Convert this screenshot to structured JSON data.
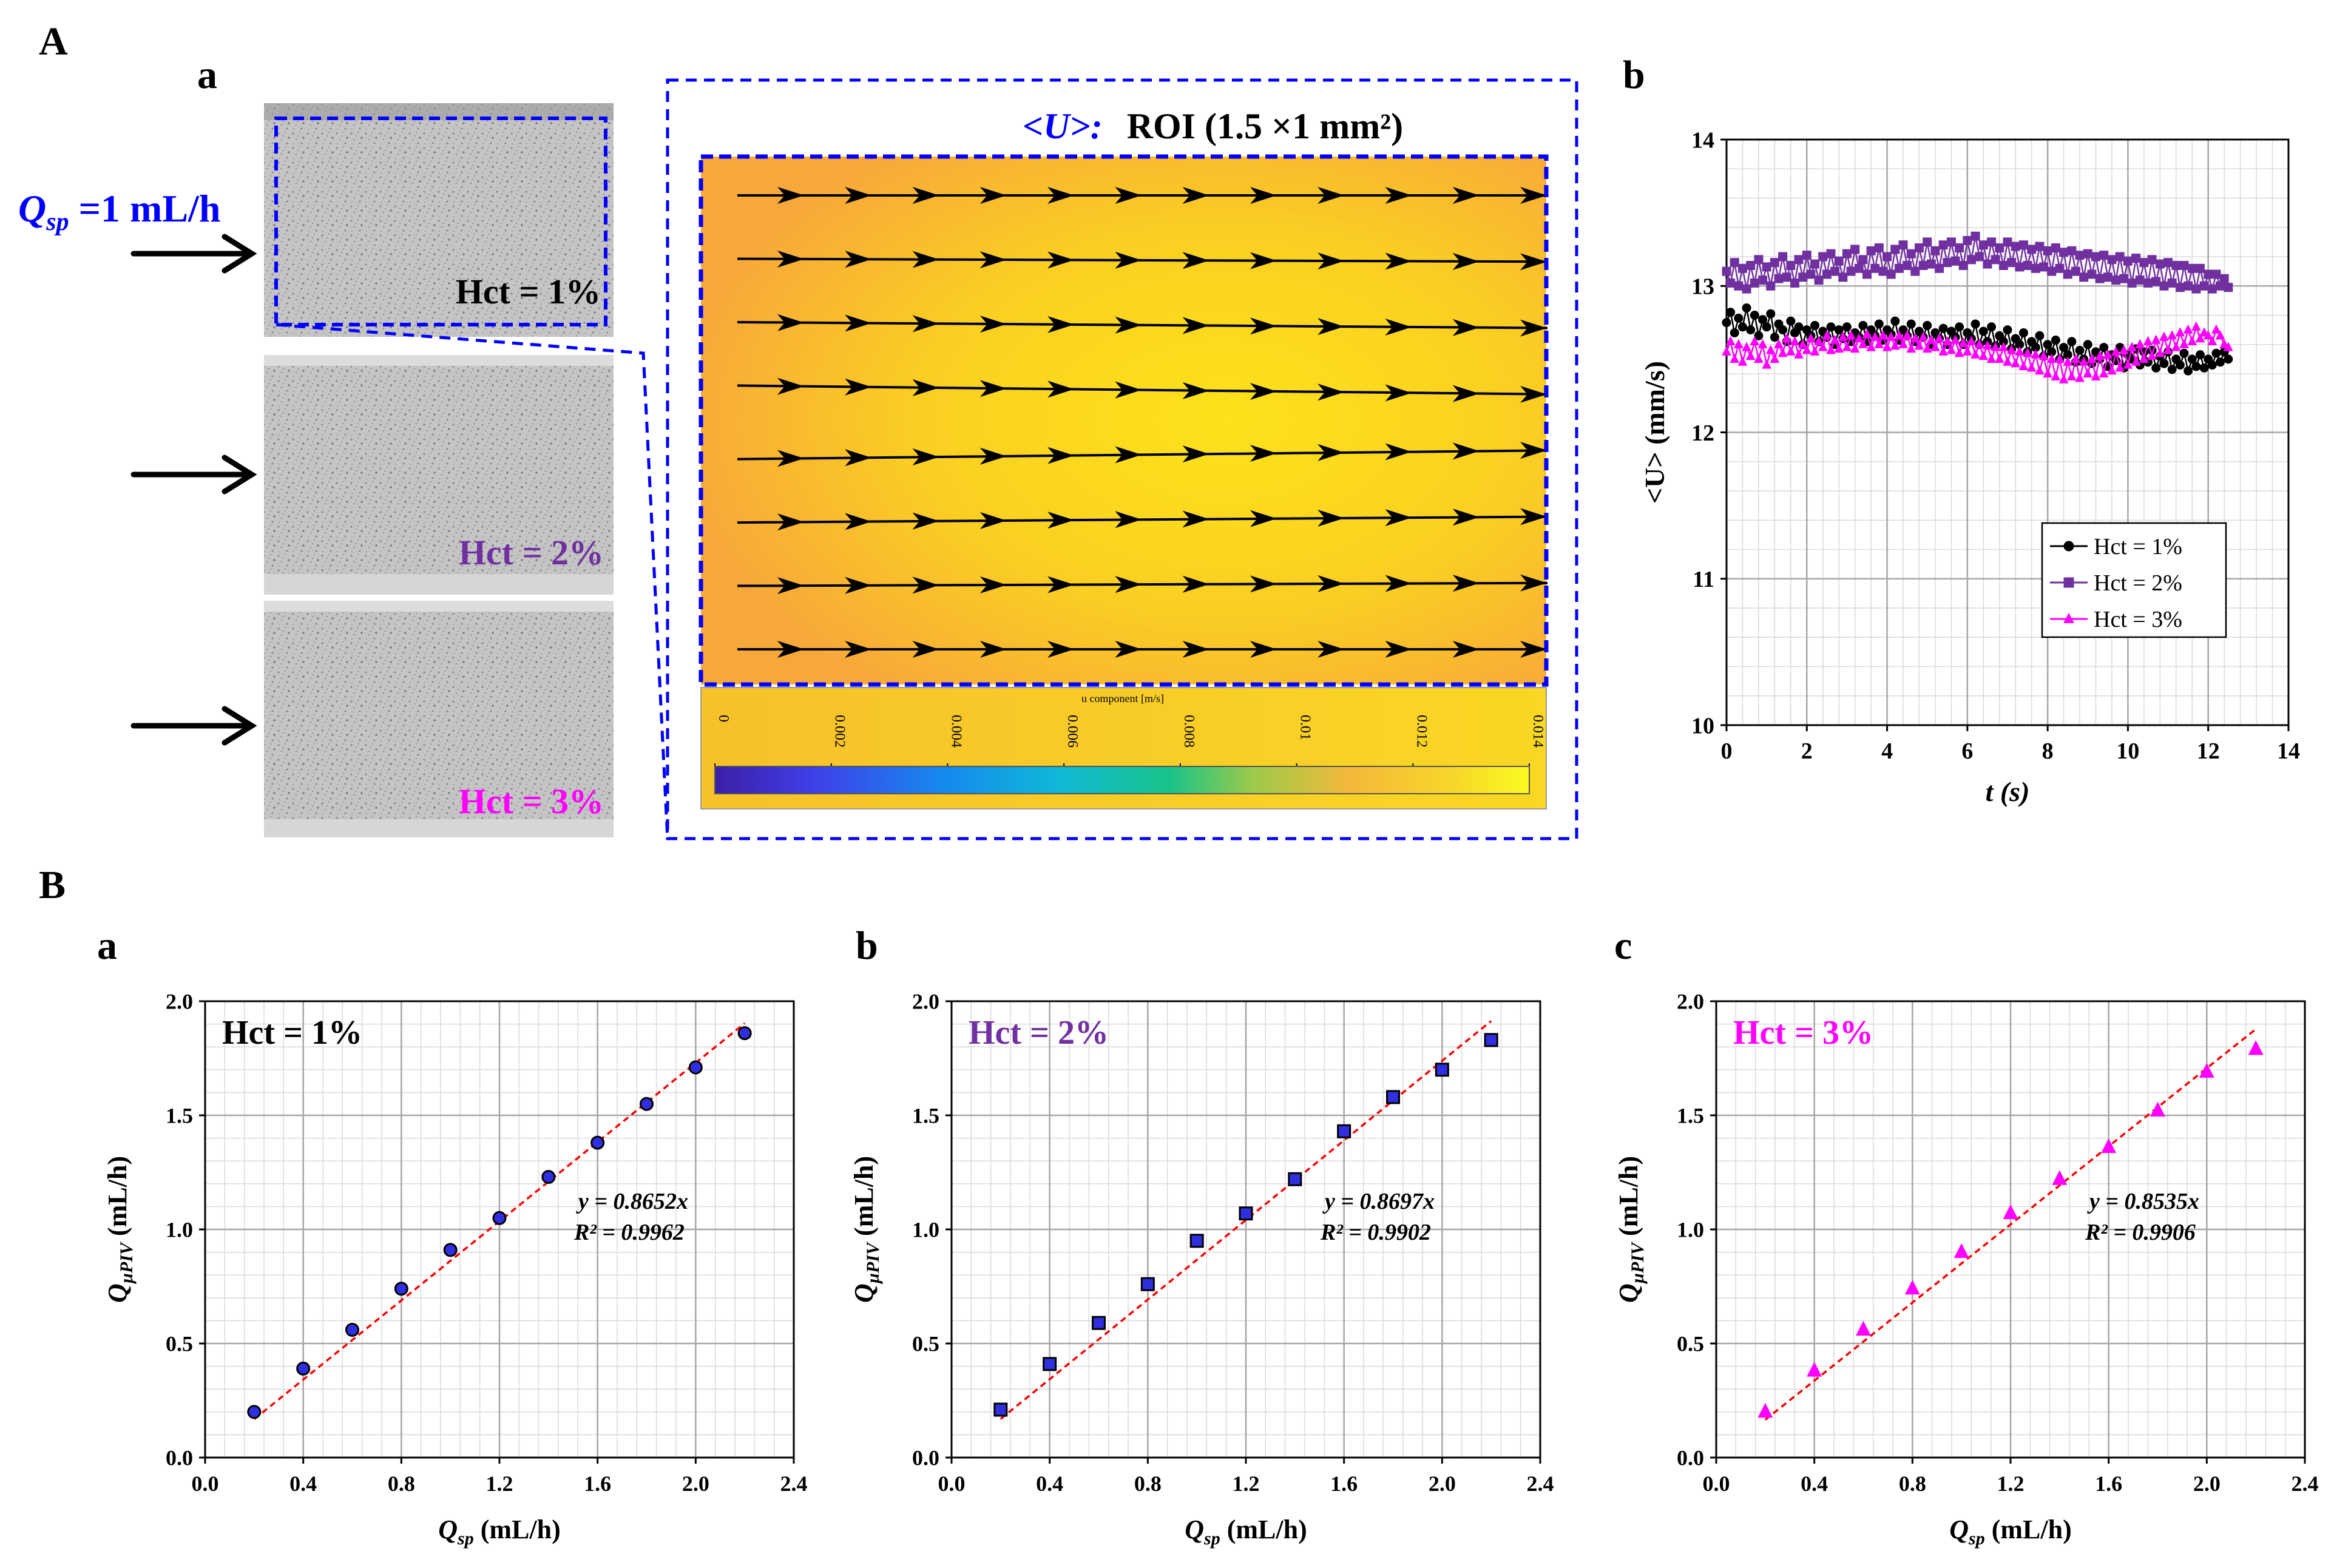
{
  "panel_labels": {
    "A": "A",
    "Aa": "a",
    "Ab": "b",
    "B": "B",
    "Ba": "a",
    "Bb": "b",
    "Bc": "c"
  },
  "flow_label": {
    "q": "Q",
    "sub": "sp",
    "rest": " =1 mL/h"
  },
  "images": [
    {
      "label": "Hct = 1%",
      "color": "#000000"
    },
    {
      "label": "Hct = 2%",
      "color": "#7030A0"
    },
    {
      "label": "Hct = 3%",
      "color": "#FF00FF"
    }
  ],
  "roi": {
    "u_label": "<U>:",
    "roi_label": "ROI (1.5 ×1 mm²)"
  },
  "colorbar": {
    "title": "u component [m/s]",
    "ticks": [
      "0",
      "0.002",
      "0.004",
      "0.006",
      "0.008",
      "0.01",
      "0.012",
      "0.014"
    ]
  },
  "colors": {
    "hct1": "#000000",
    "hct2": "#7030A0",
    "hct3": "#FF00FF",
    "dash": "#0000FF",
    "fit": "#FF0000",
    "marker2": "#2F2FE0"
  },
  "chart_data": [
    {
      "id": "Ab",
      "type": "line",
      "ylabel": "<U> (mm/s)",
      "xlabel": "t (s)",
      "xlim": [
        0,
        14
      ],
      "ylim": [
        10,
        14
      ],
      "xticks": [
        "0",
        "2",
        "4",
        "6",
        "8",
        "10",
        "12",
        "14"
      ],
      "yticks": [
        "10",
        "11",
        "12",
        "13",
        "14"
      ],
      "grid": true,
      "legend": "center-right",
      "series": [
        {
          "name": "Hct = 1%",
          "marker": "circle",
          "x0": 0,
          "dt": 0.1,
          "values": [
            12.75,
            12.82,
            12.68,
            12.78,
            12.72,
            12.85,
            12.7,
            12.8,
            12.66,
            12.77,
            12.72,
            12.81,
            12.65,
            12.74,
            12.7,
            12.62,
            12.76,
            12.68,
            12.72,
            12.6,
            12.7,
            12.66,
            12.73,
            12.62,
            12.69,
            12.65,
            12.72,
            12.6,
            12.7,
            12.64,
            12.72,
            12.62,
            12.68,
            12.65,
            12.73,
            12.62,
            12.7,
            12.66,
            12.74,
            12.63,
            12.7,
            12.67,
            12.76,
            12.63,
            12.7,
            12.66,
            12.74,
            12.62,
            12.69,
            12.65,
            12.73,
            12.6,
            12.68,
            12.64,
            12.71,
            12.6,
            12.69,
            12.65,
            12.72,
            12.6,
            12.68,
            12.64,
            12.74,
            12.6,
            12.69,
            12.62,
            12.72,
            12.59,
            12.66,
            12.62,
            12.7,
            12.57,
            12.64,
            12.6,
            12.68,
            12.55,
            12.62,
            12.58,
            12.66,
            12.52,
            12.6,
            12.55,
            12.63,
            12.5,
            12.58,
            12.53,
            12.62,
            12.48,
            12.56,
            12.5,
            12.6,
            12.47,
            12.55,
            12.5,
            12.58,
            12.45,
            12.53,
            12.49,
            12.58,
            12.44,
            12.53,
            12.5,
            12.57,
            12.46,
            12.55,
            12.48,
            12.56,
            12.44,
            12.52,
            12.47,
            12.55,
            12.43,
            12.5,
            12.46,
            12.54,
            12.42,
            12.5,
            12.45,
            12.53,
            12.44,
            12.5,
            12.46,
            12.54,
            12.48,
            12.55,
            12.5
          ]
        },
        {
          "name": "Hct = 2%",
          "marker": "square",
          "x0": 0,
          "dt": 0.1,
          "values": [
            13.1,
            13.02,
            13.16,
            13.0,
            13.12,
            12.98,
            13.14,
            13.02,
            13.18,
            13.04,
            13.13,
            13.0,
            13.16,
            13.05,
            13.2,
            13.06,
            13.14,
            13.02,
            13.18,
            13.06,
            13.21,
            13.08,
            13.15,
            13.04,
            13.2,
            13.08,
            13.22,
            13.1,
            13.17,
            13.06,
            13.22,
            13.1,
            13.25,
            13.12,
            13.18,
            13.08,
            13.24,
            13.12,
            13.26,
            13.1,
            13.2,
            13.08,
            13.25,
            13.12,
            13.28,
            13.14,
            13.22,
            13.1,
            13.26,
            13.14,
            13.3,
            13.15,
            13.24,
            13.12,
            13.28,
            13.16,
            13.3,
            13.17,
            13.26,
            13.14,
            13.31,
            13.18,
            13.34,
            13.2,
            13.28,
            13.15,
            13.3,
            13.18,
            13.26,
            13.14,
            13.3,
            13.16,
            13.27,
            13.13,
            13.28,
            13.14,
            13.25,
            13.12,
            13.27,
            13.13,
            13.24,
            13.1,
            13.26,
            13.12,
            13.23,
            13.08,
            13.24,
            13.1,
            13.21,
            13.06,
            13.22,
            13.08,
            13.2,
            13.05,
            13.21,
            13.06,
            13.18,
            13.04,
            13.2,
            13.05,
            13.17,
            13.02,
            13.19,
            13.04,
            13.16,
            13.02,
            13.18,
            13.03,
            13.15,
            13.0,
            13.16,
            13.02,
            13.14,
            12.99,
            13.14,
            13.0,
            13.12,
            12.98,
            13.12,
            13.0,
            13.08,
            12.98,
            13.08,
            13.0,
            13.05,
            12.99
          ]
        },
        {
          "name": "Hct = 3%",
          "marker": "triangle",
          "x0": 0,
          "dt": 0.1,
          "values": [
            12.55,
            12.62,
            12.5,
            12.6,
            12.48,
            12.58,
            12.52,
            12.62,
            12.5,
            12.6,
            12.46,
            12.56,
            12.5,
            12.6,
            12.54,
            12.64,
            12.55,
            12.62,
            12.53,
            12.6,
            12.56,
            12.64,
            12.55,
            12.62,
            12.58,
            12.66,
            12.56,
            12.63,
            12.57,
            12.65,
            12.58,
            12.66,
            12.57,
            12.64,
            12.6,
            12.67,
            12.58,
            12.65,
            12.6,
            12.66,
            12.58,
            12.65,
            12.59,
            12.66,
            12.6,
            12.66,
            12.57,
            12.64,
            12.59,
            12.65,
            12.57,
            12.63,
            12.58,
            12.64,
            12.55,
            12.62,
            12.56,
            12.63,
            12.54,
            12.61,
            12.55,
            12.62,
            12.53,
            12.6,
            12.52,
            12.59,
            12.5,
            12.58,
            12.5,
            12.58,
            12.48,
            12.56,
            12.47,
            12.55,
            12.45,
            12.54,
            12.44,
            12.53,
            12.42,
            12.52,
            12.4,
            12.5,
            12.38,
            12.5,
            12.36,
            12.48,
            12.38,
            12.5,
            12.37,
            12.48,
            12.4,
            12.5,
            12.38,
            12.52,
            12.4,
            12.53,
            12.42,
            12.55,
            12.44,
            12.56,
            12.46,
            12.58,
            12.48,
            12.6,
            12.5,
            12.62,
            12.52,
            12.63,
            12.54,
            12.65,
            12.56,
            12.66,
            12.58,
            12.68,
            12.6,
            12.7,
            12.62,
            12.72,
            12.64,
            12.68,
            12.66,
            12.62,
            12.7,
            12.66,
            12.6,
            12.58
          ]
        }
      ]
    },
    {
      "id": "Ba",
      "type": "scatter",
      "title": "Hct = 1%",
      "title_color": "#000000",
      "marker": "circle",
      "marker_fill": "#2F2FE0",
      "x": [
        0.2,
        0.4,
        0.6,
        0.8,
        1.0,
        1.2,
        1.4,
        1.6,
        1.8,
        2.0,
        2.2
      ],
      "y": [
        0.2,
        0.39,
        0.56,
        0.74,
        0.91,
        1.05,
        1.23,
        1.38,
        1.55,
        1.71,
        1.86
      ],
      "fit": {
        "slope": 0.8652,
        "equation": "y = 0.8652x",
        "r2": "R² = 0.9962"
      },
      "xlabel": "Qsp (mL/h)",
      "ylabel": "QµPIV (mL/h)",
      "xlim": [
        0,
        2.4
      ],
      "ylim": [
        0,
        2.0
      ],
      "xticks": [
        "0.0",
        "0.4",
        "0.8",
        "1.2",
        "1.6",
        "2.0",
        "2.4"
      ],
      "yticks": [
        "0.0",
        "0.5",
        "1.0",
        "1.5",
        "2.0"
      ]
    },
    {
      "id": "Bb",
      "type": "scatter",
      "title": "Hct = 2%",
      "title_color": "#7030A0",
      "marker": "square",
      "marker_fill": "#2F2FE0",
      "x": [
        0.2,
        0.4,
        0.6,
        0.8,
        1.0,
        1.2,
        1.4,
        1.6,
        1.8,
        2.0,
        2.2
      ],
      "y": [
        0.21,
        0.41,
        0.59,
        0.76,
        0.95,
        1.07,
        1.22,
        1.43,
        1.58,
        1.7,
        1.83
      ],
      "fit": {
        "slope": 0.8697,
        "equation": "y = 0.8697x",
        "r2": "R² = 0.9902"
      },
      "xlabel": "Qsp (mL/h)",
      "ylabel": "QµPIV (mL/h)",
      "xlim": [
        0,
        2.4
      ],
      "ylim": [
        0,
        2.0
      ],
      "xticks": [
        "0.0",
        "0.4",
        "0.8",
        "1.2",
        "1.6",
        "2.0",
        "2.4"
      ],
      "yticks": [
        "0.0",
        "0.5",
        "1.0",
        "1.5",
        "2.0"
      ]
    },
    {
      "id": "Bc",
      "type": "scatter",
      "title": "Hct = 3%",
      "title_color": "#FF00FF",
      "marker": "triangle",
      "marker_fill": "#FF00FF",
      "x": [
        0.2,
        0.4,
        0.6,
        0.8,
        1.0,
        1.2,
        1.4,
        1.6,
        1.8,
        2.0,
        2.2
      ],
      "y": [
        0.2,
        0.38,
        0.56,
        0.74,
        0.9,
        1.07,
        1.22,
        1.36,
        1.52,
        1.69,
        1.79
      ],
      "fit": {
        "slope": 0.8535,
        "equation": "y = 0.8535x",
        "r2": "R² = 0.9906"
      },
      "xlabel": "Qsp (mL/h)",
      "ylabel": "QµPIV (mL/h)",
      "xlim": [
        0,
        2.4
      ],
      "ylim": [
        0,
        2.0
      ],
      "xticks": [
        "0.0",
        "0.4",
        "0.8",
        "1.2",
        "1.6",
        "2.0",
        "2.4"
      ],
      "yticks": [
        "0.0",
        "0.5",
        "1.0",
        "1.5",
        "2.0"
      ]
    }
  ]
}
